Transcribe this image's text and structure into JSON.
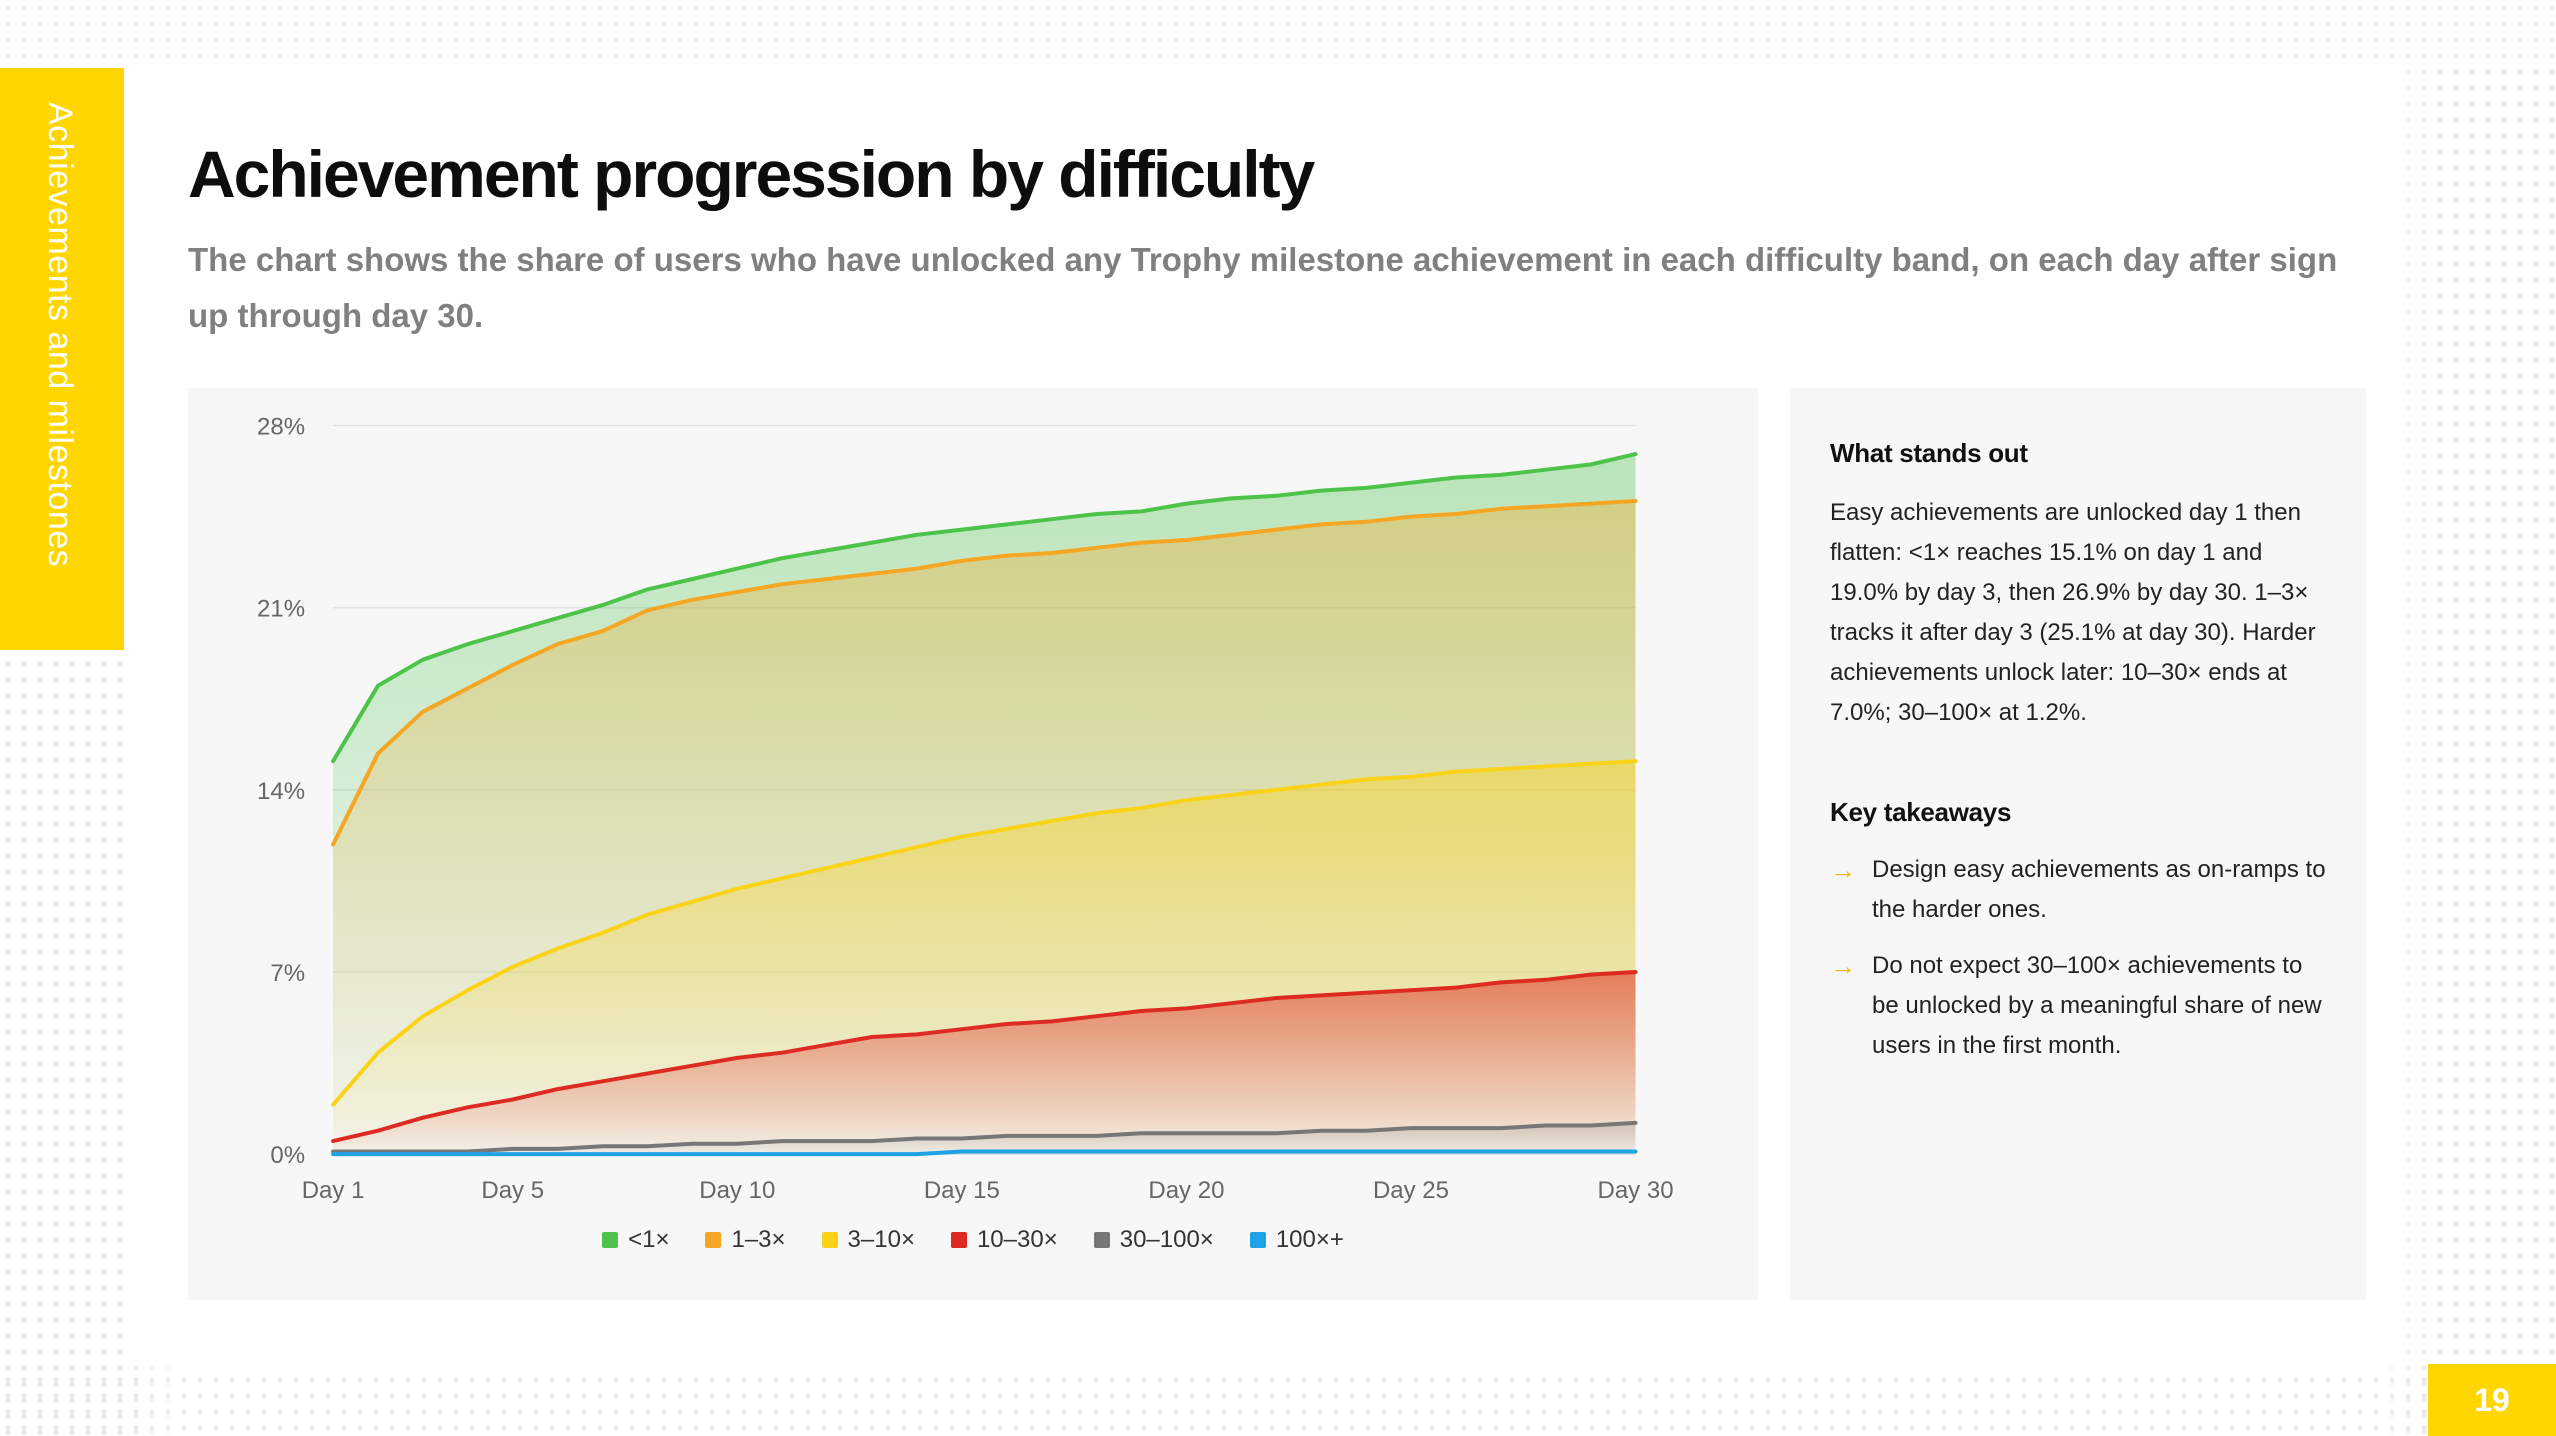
{
  "section_tab": "Achievements and milestones",
  "title": "Achievement progression by difficulty",
  "subtitle": "The chart shows the share of users who have unlocked any Trophy milestone achievement in each difficulty band, on each day after sign up through day 30.",
  "page_number": "19",
  "chart_data": {
    "type": "area",
    "title": "",
    "xlabel": "",
    "ylabel": "",
    "x": [
      1,
      2,
      3,
      4,
      5,
      6,
      7,
      8,
      9,
      10,
      11,
      12,
      13,
      14,
      15,
      16,
      17,
      18,
      19,
      20,
      21,
      22,
      23,
      24,
      25,
      26,
      27,
      28,
      29,
      30
    ],
    "x_ticks": [
      1,
      5,
      10,
      15,
      20,
      25,
      30
    ],
    "x_tick_labels": [
      "Day 1",
      "Day 5",
      "Day 10",
      "Day 15",
      "Day 20",
      "Day 25",
      "Day 30"
    ],
    "y_ticks": [
      0,
      7,
      14,
      21,
      28
    ],
    "y_tick_labels": [
      "0%",
      "7%",
      "14%",
      "21%",
      "28%"
    ],
    "ylim": [
      0,
      28
    ],
    "grid": true,
    "legend_position": "bottom-center",
    "series": [
      {
        "name": "<1×",
        "color": "#4DC34A",
        "values": [
          15.1,
          18.0,
          19.0,
          19.6,
          20.1,
          20.6,
          21.1,
          21.7,
          22.1,
          22.5,
          22.9,
          23.2,
          23.5,
          23.8,
          24.0,
          24.2,
          24.4,
          24.6,
          24.7,
          25.0,
          25.2,
          25.3,
          25.5,
          25.6,
          25.8,
          26.0,
          26.1,
          26.3,
          26.5,
          26.9
        ]
      },
      {
        "name": "1–3×",
        "color": "#F5A623",
        "values": [
          11.9,
          15.4,
          17.0,
          17.9,
          18.8,
          19.6,
          20.1,
          20.9,
          21.3,
          21.6,
          21.9,
          22.1,
          22.3,
          22.5,
          22.8,
          23.0,
          23.1,
          23.3,
          23.5,
          23.6,
          23.8,
          24.0,
          24.2,
          24.3,
          24.5,
          24.6,
          24.8,
          24.9,
          25.0,
          25.1
        ]
      },
      {
        "name": "3–10×",
        "color": "#FAD319",
        "values": [
          1.9,
          3.9,
          5.3,
          6.3,
          7.2,
          7.9,
          8.5,
          9.2,
          9.7,
          10.2,
          10.6,
          11.0,
          11.4,
          11.8,
          12.2,
          12.5,
          12.8,
          13.1,
          13.3,
          13.6,
          13.8,
          14.0,
          14.2,
          14.4,
          14.5,
          14.7,
          14.8,
          14.9,
          15.0,
          15.1
        ]
      },
      {
        "name": "10–30×",
        "color": "#DD2A22",
        "values": [
          0.5,
          0.9,
          1.4,
          1.8,
          2.1,
          2.5,
          2.8,
          3.1,
          3.4,
          3.7,
          3.9,
          4.2,
          4.5,
          4.6,
          4.8,
          5.0,
          5.1,
          5.3,
          5.5,
          5.6,
          5.8,
          6.0,
          6.1,
          6.2,
          6.3,
          6.4,
          6.6,
          6.7,
          6.9,
          7.0
        ]
      },
      {
        "name": "30–100×",
        "color": "#777777",
        "values": [
          0.1,
          0.1,
          0.1,
          0.1,
          0.2,
          0.2,
          0.3,
          0.3,
          0.4,
          0.4,
          0.5,
          0.5,
          0.5,
          0.6,
          0.6,
          0.7,
          0.7,
          0.7,
          0.8,
          0.8,
          0.8,
          0.8,
          0.9,
          0.9,
          1.0,
          1.0,
          1.0,
          1.1,
          1.1,
          1.2
        ]
      },
      {
        "name": "100×+",
        "color": "#1EA3E6",
        "values": [
          0.0,
          0.0,
          0.0,
          0.0,
          0.0,
          0.0,
          0.0,
          0.0,
          0.0,
          0.0,
          0.0,
          0.0,
          0.0,
          0.0,
          0.1,
          0.1,
          0.1,
          0.1,
          0.1,
          0.1,
          0.1,
          0.1,
          0.1,
          0.1,
          0.1,
          0.1,
          0.1,
          0.1,
          0.1,
          0.1
        ]
      }
    ]
  },
  "side": {
    "heading1": "What stands out",
    "paragraph": "Easy achievements are unlocked day 1 then flatten: <1× reaches 15.1% on day 1 and 19.0% by day 3, then 26.9% by day 30. 1–3× tracks it after day 3 (25.1% at day 30). Harder achievements unlock later: 10–30× ends at 7.0%; 30–100× at 1.2%.",
    "heading2": "Key takeaways",
    "arrow_glyph": "→",
    "takeaways": [
      "Design easy achievements as on-ramps to the harder ones.",
      "Do not expect 30–100× achievements to be unlocked by a meaningful share of new users in the first month."
    ]
  }
}
